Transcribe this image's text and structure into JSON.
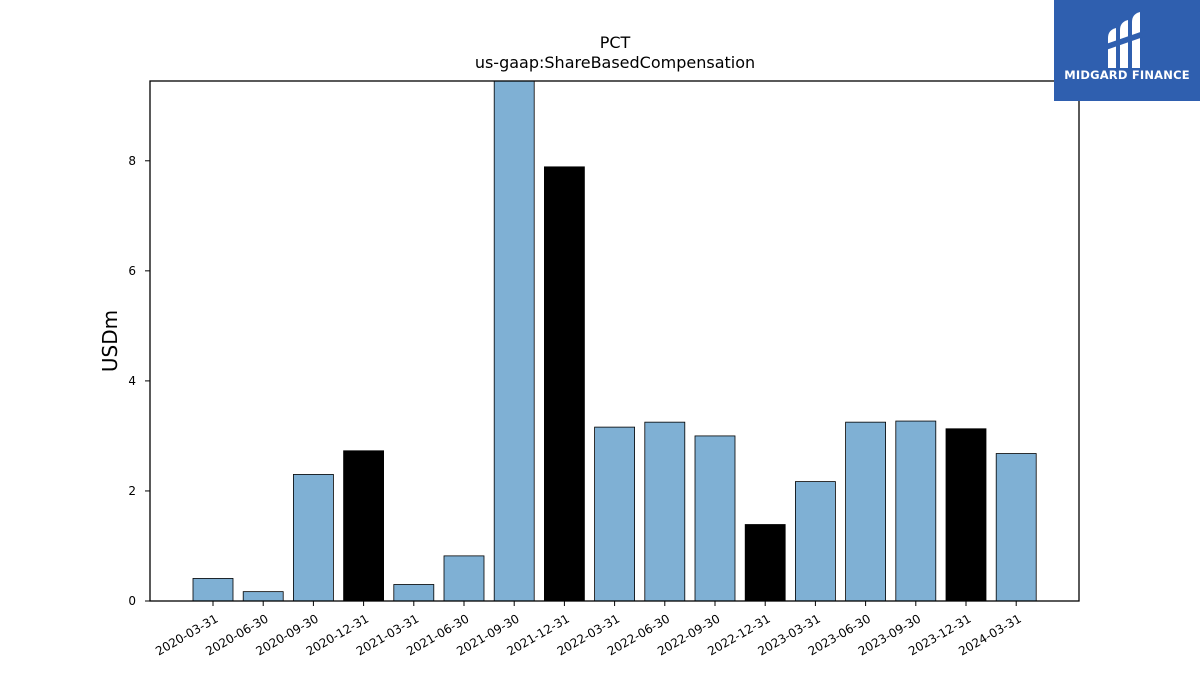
{
  "chart_data": {
    "type": "bar",
    "title": "PCT",
    "subtitle": "us-gaap:ShareBasedCompensation",
    "xlabel": "",
    "ylabel": "USDm",
    "ylim": [
      0,
      9.45
    ],
    "yticks": [
      0,
      2,
      4,
      6,
      8
    ],
    "grid": false,
    "categories": [
      "2020-03-31",
      "2020-06-30",
      "2020-09-30",
      "2020-12-31",
      "2021-03-31",
      "2021-06-30",
      "2021-09-30",
      "2021-12-31",
      "2022-03-31",
      "2022-06-30",
      "2022-09-30",
      "2022-12-31",
      "2023-03-31",
      "2023-06-30",
      "2023-09-30",
      "2023-12-31",
      "2024-03-31"
    ],
    "values": [
      0.41,
      0.17,
      2.3,
      2.73,
      0.3,
      0.82,
      9.45,
      7.89,
      3.16,
      3.25,
      3.0,
      1.39,
      2.17,
      3.25,
      3.27,
      3.13,
      2.68
    ],
    "highlight_quarter": "12-31",
    "colors": {
      "bar": "#7fb0d4",
      "highlight": "#000000",
      "edge": "#000000"
    }
  },
  "logo": {
    "text": "MIDGARD FINANCE",
    "background": "#2f5faf"
  }
}
